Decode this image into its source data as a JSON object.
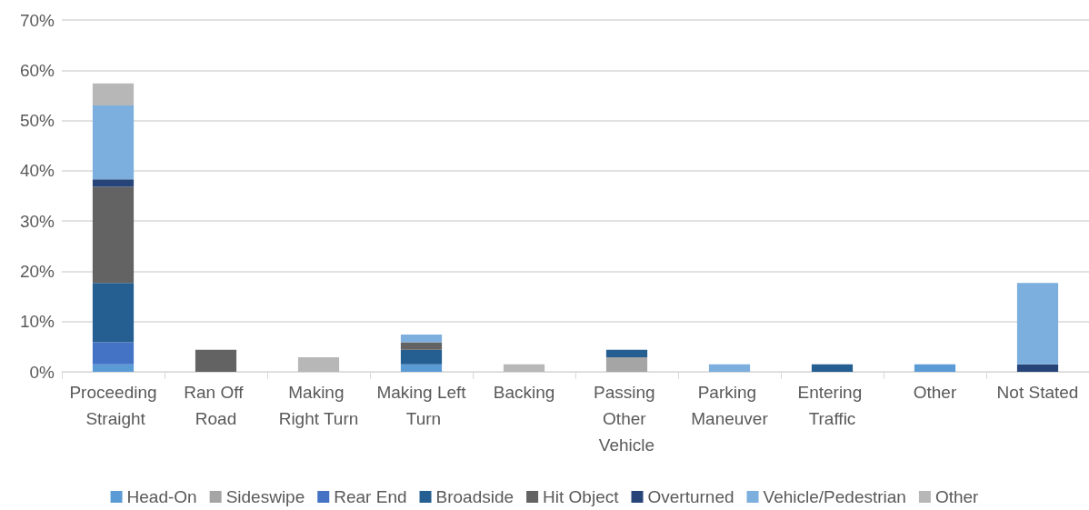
{
  "chart_data": {
    "type": "bar",
    "stacked": true,
    "categories": [
      "Proceeding Straight",
      "Ran Off Road",
      "Making Right Turn",
      "Making Left Turn",
      "Backing",
      "Passing Other Vehicle",
      "Parking Maneuver",
      "Entering Traffic",
      "Other",
      "Not Stated"
    ],
    "series": [
      {
        "name": "Head-On",
        "color": "#5b9bd5",
        "values": [
          1.5,
          null,
          null,
          1.5,
          null,
          null,
          null,
          null,
          1.5,
          null
        ]
      },
      {
        "name": "Sideswipe",
        "color": "#a5a5a5",
        "values": [
          null,
          null,
          null,
          null,
          null,
          2.9,
          null,
          null,
          null,
          null
        ]
      },
      {
        "name": "Rear End",
        "color": "#4472c4",
        "values": [
          4.4,
          null,
          null,
          null,
          null,
          null,
          null,
          null,
          null,
          null
        ]
      },
      {
        "name": "Broadside",
        "color": "#255e91",
        "values": [
          11.8,
          null,
          null,
          2.9,
          null,
          1.5,
          null,
          1.5,
          null,
          null
        ]
      },
      {
        "name": "Hit Object",
        "color": "#636363",
        "values": [
          19.1,
          4.4,
          null,
          1.5,
          null,
          null,
          null,
          null,
          null,
          null
        ]
      },
      {
        "name": "Overturned",
        "color": "#264478",
        "values": [
          1.5,
          null,
          null,
          null,
          null,
          null,
          null,
          null,
          null,
          1.5
        ]
      },
      {
        "name": "Vehicle/Pedestrian",
        "color": "#7cafdd",
        "values": [
          14.7,
          null,
          null,
          1.5,
          null,
          null,
          1.5,
          null,
          null,
          16.2
        ]
      },
      {
        "name": "Other",
        "color": "#b7b7b7",
        "values": [
          4.4,
          null,
          2.9,
          null,
          1.5,
          null,
          null,
          null,
          null,
          null
        ]
      }
    ],
    "ylim": [
      0,
      70
    ],
    "yticks": [
      {
        "value": 0,
        "label": "0%"
      },
      {
        "value": 10,
        "label": "10%"
      },
      {
        "value": 20,
        "label": "20%"
      },
      {
        "value": 30,
        "label": "30%"
      },
      {
        "value": 40,
        "label": "40%"
      },
      {
        "value": 50,
        "label": "50%"
      },
      {
        "value": 60,
        "label": "60%"
      },
      {
        "value": 70,
        "label": "70%"
      }
    ],
    "grid": "y",
    "legend": "bottom"
  }
}
